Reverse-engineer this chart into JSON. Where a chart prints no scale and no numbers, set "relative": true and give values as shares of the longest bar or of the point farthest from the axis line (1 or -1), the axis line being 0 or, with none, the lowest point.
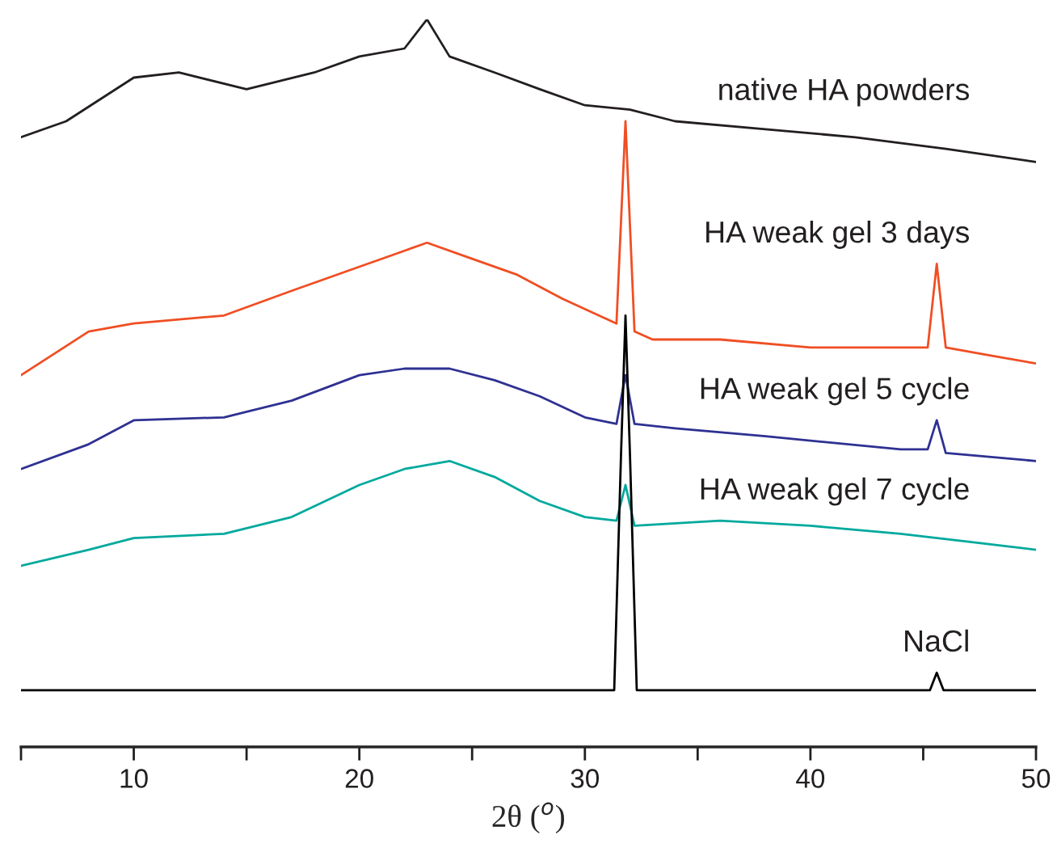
{
  "chart_data": {
    "type": "line",
    "relative": true,
    "xlabel": "2θ ($^{o}$)",
    "xlim": [
      5,
      50
    ],
    "xticks": [
      {
        "value": 5,
        "label": null
      },
      10,
      {
        "value": 15,
        "label": null
      },
      20,
      {
        "value": 25,
        "label": null
      },
      30,
      {
        "value": 35,
        "label": null
      },
      40,
      {
        "value": 45,
        "label": null
      },
      50
    ],
    "legend": false,
    "grid": false,
    "marker": "none",
    "line_style": "solid",
    "series": [
      {
        "name": "native HA powders",
        "color": "#231f20",
        "x": [
          5,
          7,
          10,
          12,
          15,
          18,
          20,
          22,
          23,
          24,
          26,
          28,
          30,
          32,
          34,
          38,
          42,
          46,
          50
        ],
        "values": [
          0.838,
          0.86,
          0.92,
          0.927,
          0.904,
          0.927,
          0.949,
          0.96,
          1.0,
          0.949,
          0.927,
          0.904,
          0.882,
          0.876,
          0.86,
          0.849,
          0.838,
          0.822,
          0.804
        ]
      },
      {
        "name": "HA weak gel 3 days",
        "color": "#f04e23",
        "x": [
          5,
          8,
          10,
          14,
          17,
          20,
          22,
          23,
          25,
          27,
          29,
          31.4,
          31.8,
          32.2,
          33,
          36,
          40,
          44,
          45.2,
          45.6,
          46.0,
          48,
          50
        ],
        "values": [
          0.511,
          0.571,
          0.582,
          0.593,
          0.627,
          0.66,
          0.682,
          0.693,
          0.671,
          0.649,
          0.616,
          0.582,
          0.86,
          0.571,
          0.56,
          0.56,
          0.549,
          0.549,
          0.549,
          0.664,
          0.549,
          0.538,
          0.527
        ]
      },
      {
        "name": "HA weak gel 5 cycle",
        "color": "#2e3192",
        "x": [
          5,
          8,
          10,
          14,
          17,
          20,
          22,
          24,
          26,
          28,
          30,
          31.4,
          31.8,
          32.2,
          34,
          38,
          44,
          45.2,
          45.6,
          46.0,
          50
        ],
        "values": [
          0.382,
          0.416,
          0.449,
          0.453,
          0.476,
          0.511,
          0.52,
          0.52,
          0.504,
          0.482,
          0.453,
          0.444,
          0.511,
          0.444,
          0.438,
          0.427,
          0.409,
          0.409,
          0.449,
          0.404,
          0.393
        ]
      },
      {
        "name": "HA weak gel 7 cycle",
        "color": "#00a99d",
        "x": [
          5,
          8,
          10,
          14,
          17,
          20,
          22,
          24,
          26,
          28,
          30,
          31.4,
          31.8,
          32.2,
          36,
          40,
          44,
          47,
          50
        ],
        "values": [
          0.249,
          0.271,
          0.287,
          0.293,
          0.316,
          0.36,
          0.382,
          0.393,
          0.371,
          0.338,
          0.316,
          0.311,
          0.36,
          0.304,
          0.311,
          0.304,
          0.293,
          0.282,
          0.271
        ]
      },
      {
        "name": "NaCl",
        "color": "#000000",
        "x": [
          5,
          31.3,
          31.6,
          31.8,
          32.0,
          32.3,
          45.3,
          45.6,
          45.9,
          50
        ],
        "values": [
          0.078,
          0.078,
          0.4,
          0.593,
          0.4,
          0.078,
          0.078,
          0.102,
          0.078,
          0.078
        ]
      }
    ]
  }
}
